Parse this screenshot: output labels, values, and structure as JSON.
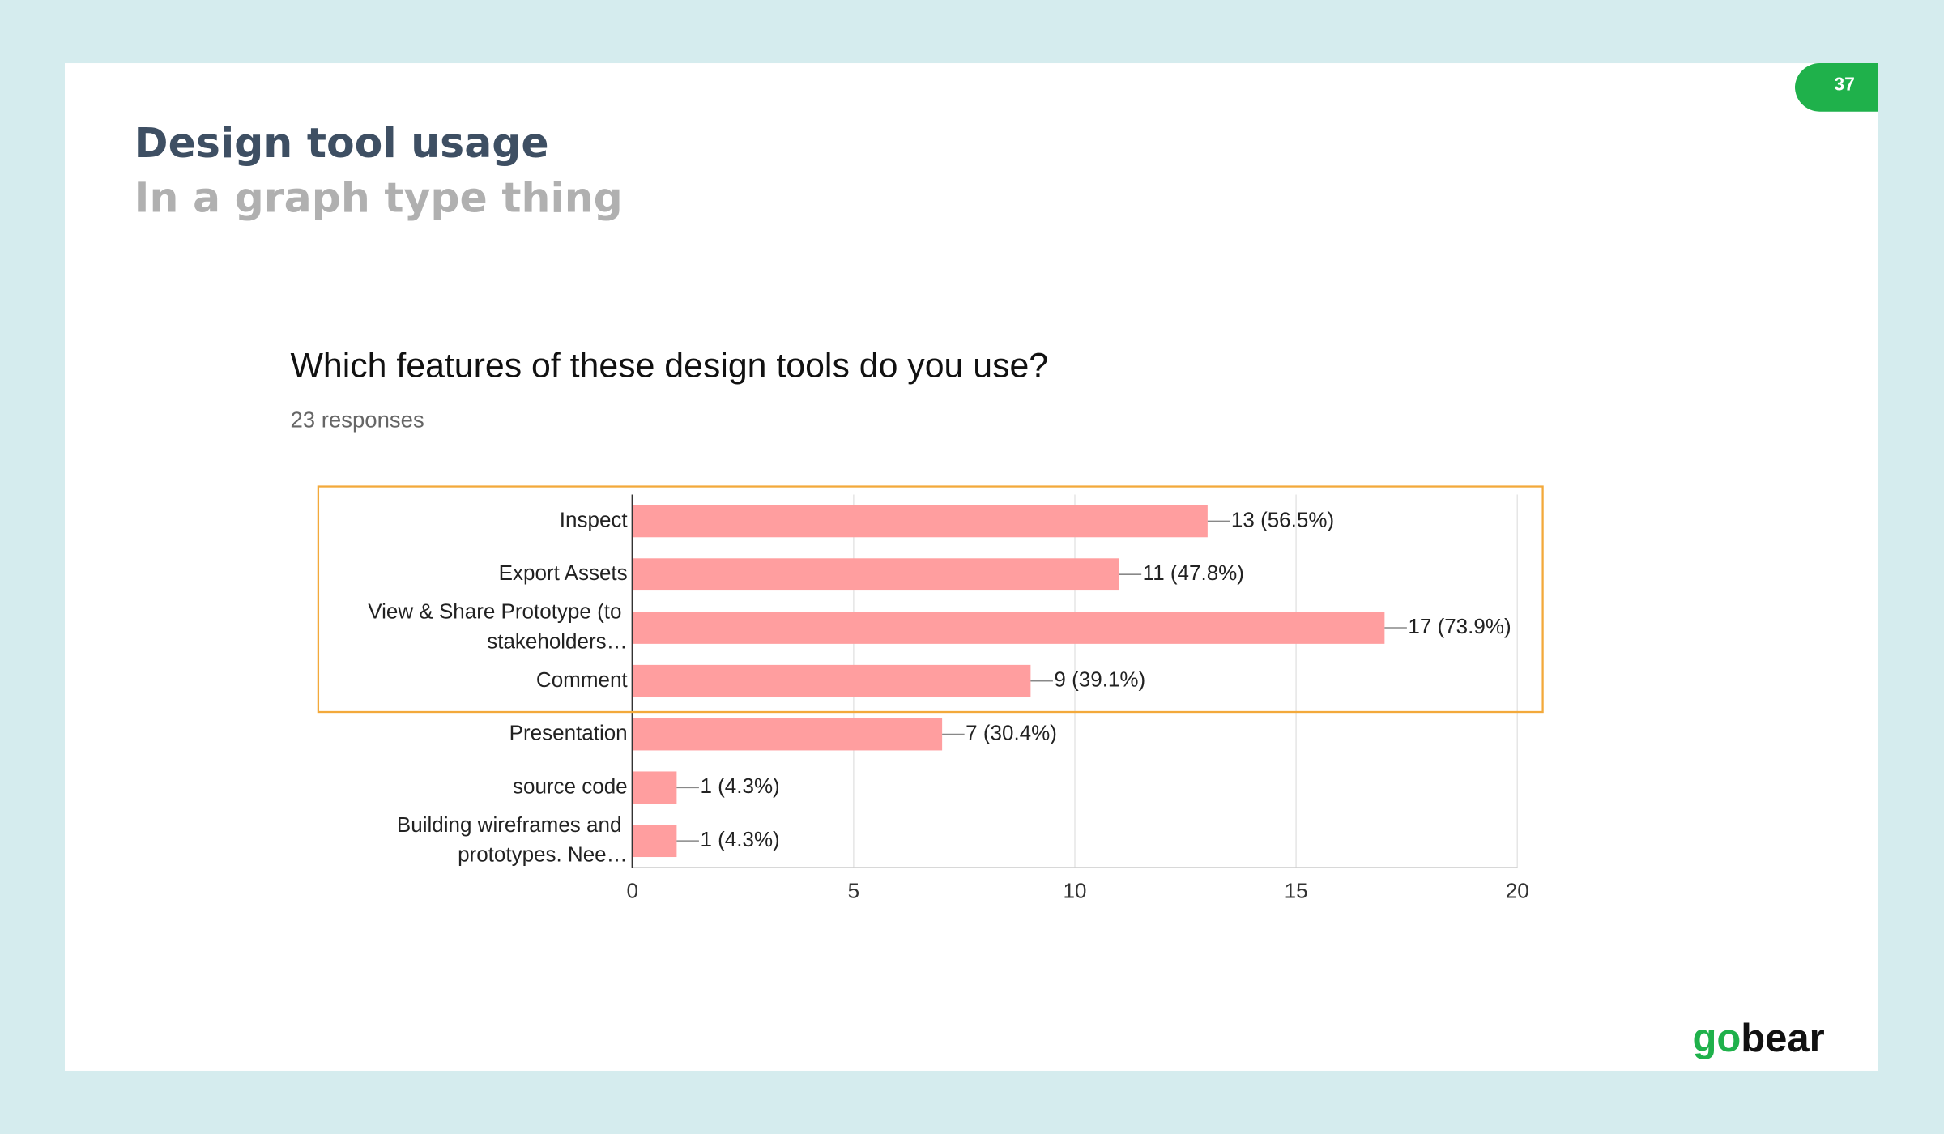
{
  "slide_number": "37",
  "header": {
    "title": "Design tool usage",
    "subtitle": "In a graph type thing"
  },
  "logo": [
    "go",
    "bear"
  ],
  "chart_data": {
    "type": "bar",
    "orientation": "horizontal",
    "title": "Which features of these design tools do you use?",
    "subtitle": "23 responses",
    "categories": [
      "Inspect",
      "Export Assets",
      "View & Share Prototype (to stakeholders…",
      "Comment",
      "Presentation",
      "source code",
      "Building wireframes and prototypes. Nee…"
    ],
    "values": [
      13,
      11,
      17,
      9,
      7,
      1,
      1
    ],
    "value_labels": [
      "13 (56.5%)",
      "11 (47.8%)",
      "17 (73.9%)",
      "9 (39.1%)",
      "7 (30.4%)",
      "1 (4.3%)",
      "1 (4.3%)"
    ],
    "color": "#ff9e9f",
    "xlim": [
      0,
      20
    ],
    "xticks": [
      0,
      5,
      10,
      15,
      20
    ],
    "grid": true
  }
}
